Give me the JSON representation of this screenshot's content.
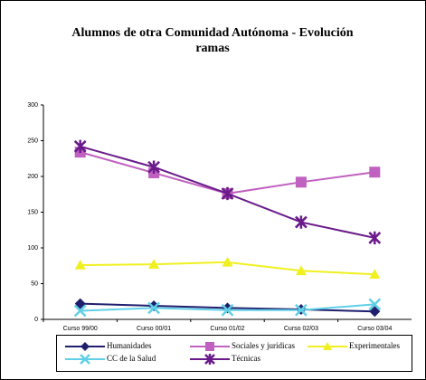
{
  "chart_data": {
    "type": "line",
    "title": "Alumnos de otra Comunidad Autónoma - Evolución ramas",
    "categories": [
      "Curso 99/00",
      "Curso 00/01",
      "Curso 01/02",
      "Curso 02/03",
      "Curso 03/04"
    ],
    "ylim": [
      0,
      300
    ],
    "yticks": [
      0,
      50,
      100,
      150,
      200,
      250,
      300
    ],
    "grid": false,
    "series": [
      {
        "name": "Humanidades",
        "color": "#1f1f6e",
        "marker": "diamond",
        "values": [
          22,
          19,
          16,
          14,
          11
        ]
      },
      {
        "name": "Sociales y jurídicas",
        "color": "#c060c0",
        "marker": "square",
        "values": [
          234,
          205,
          176,
          192,
          206
        ]
      },
      {
        "name": "Experimentales",
        "color": "#f0f020",
        "marker": "triangle",
        "values": [
          76,
          77,
          80,
          68,
          63
        ]
      },
      {
        "name": "CC de la Salud",
        "color": "#60d0e8",
        "marker": "x",
        "values": [
          12,
          16,
          13,
          13,
          21
        ]
      },
      {
        "name": "Técnicas",
        "color": "#6a1a8a",
        "marker": "star",
        "values": [
          242,
          213,
          176,
          136,
          114
        ]
      }
    ]
  }
}
